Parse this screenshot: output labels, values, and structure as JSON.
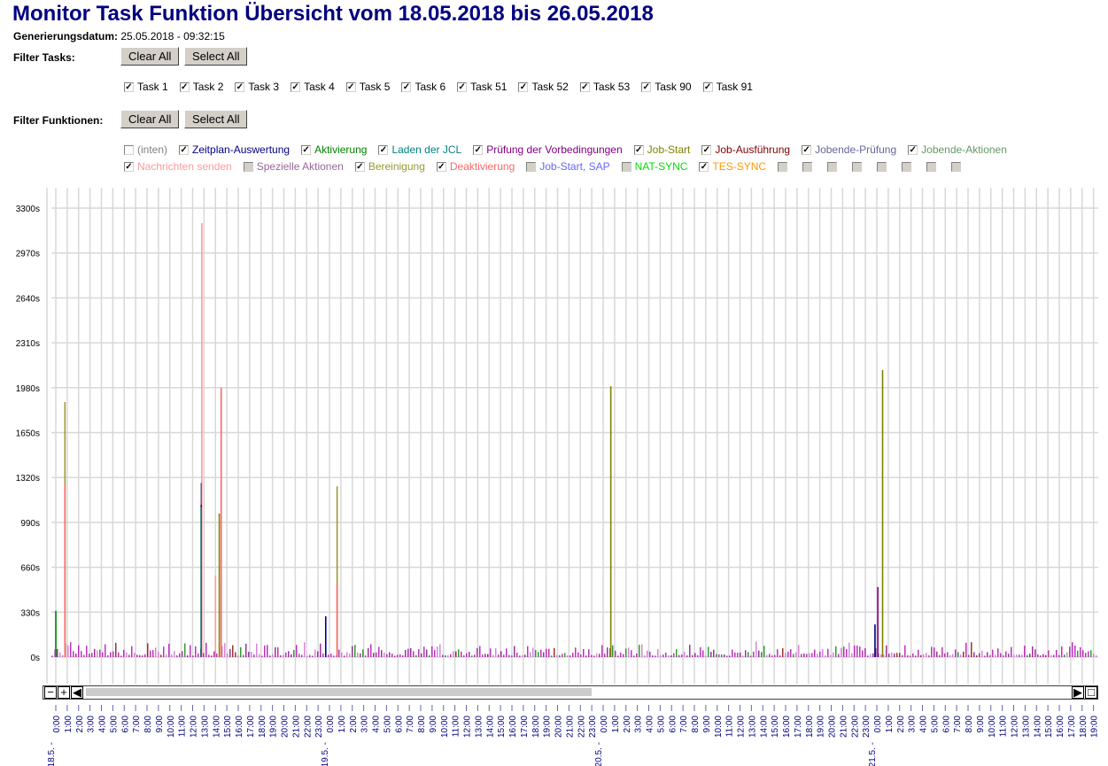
{
  "title": "Monitor Task Funktion Übersicht vom 18.05.2018 bis 26.05.2018",
  "generation": {
    "label": "Generierungsdatum:",
    "value": "25.05.2018 - 09:32:15"
  },
  "filter_tasks": {
    "label": "Filter Tasks:",
    "clear": "Clear All",
    "select": "Select All",
    "items": [
      {
        "label": "Task 1",
        "checked": true
      },
      {
        "label": "Task 2",
        "checked": true
      },
      {
        "label": "Task 3",
        "checked": true
      },
      {
        "label": "Task 4",
        "checked": true
      },
      {
        "label": "Task 5",
        "checked": true
      },
      {
        "label": "Task 6",
        "checked": true
      },
      {
        "label": "Task 51",
        "checked": true
      },
      {
        "label": "Task 52",
        "checked": true
      },
      {
        "label": "Task 53",
        "checked": true
      },
      {
        "label": "Task 90",
        "checked": true
      },
      {
        "label": "Task 91",
        "checked": true
      }
    ]
  },
  "filter_functions": {
    "label": "Filter Funktionen:",
    "clear": "Clear All",
    "select": "Select All",
    "row1": [
      {
        "label": "(inten)",
        "checked": false,
        "color": "#808080"
      },
      {
        "label": "Zeitplan-Auswertung",
        "checked": true,
        "color": "#000080"
      },
      {
        "label": "Aktivierung",
        "checked": true,
        "color": "#008000"
      },
      {
        "label": "Laden der JCL",
        "checked": true,
        "color": "#008080"
      },
      {
        "label": "Prüfung der Vorbedingungen",
        "checked": true,
        "color": "#800080"
      },
      {
        "label": "Job-Start",
        "checked": true,
        "color": "#808000"
      },
      {
        "label": "Job-Ausführung",
        "checked": true,
        "color": "#800000"
      },
      {
        "label": "Jobende-Prüfung",
        "checked": true,
        "color": "#666699"
      },
      {
        "label": "Jobende-Aktionen",
        "checked": true,
        "color": "#669966"
      }
    ],
    "row2": [
      {
        "label": "Nachrichten senden",
        "checked": true,
        "color": "#ff9999"
      },
      {
        "label": "Spezielle Aktionen",
        "checked": false,
        "disabled": true,
        "color": "#996699"
      },
      {
        "label": "Bereinigung",
        "checked": true,
        "color": "#999933"
      },
      {
        "label": "Deaktivierung",
        "checked": true,
        "color": "#ff6666"
      },
      {
        "label": "Job-Start, SAP",
        "checked": false,
        "disabled": true,
        "color": "#6666ff"
      },
      {
        "label": "NAT-SYNC",
        "checked": false,
        "disabled": true,
        "color": "#00dd00"
      },
      {
        "label": "TES-SYNC",
        "checked": true,
        "color": "#ff9900"
      },
      {
        "label": "",
        "disabled": true
      },
      {
        "label": "",
        "disabled": true
      },
      {
        "label": "",
        "disabled": true
      },
      {
        "label": "",
        "disabled": true
      },
      {
        "label": "",
        "disabled": true
      },
      {
        "label": "",
        "disabled": true
      },
      {
        "label": "",
        "disabled": true
      },
      {
        "label": "",
        "disabled": true
      }
    ]
  },
  "chart_data": {
    "type": "bar",
    "ylim": [
      0,
      3300
    ],
    "yticks": [
      "0s",
      "330s",
      "660s",
      "990s",
      "1320s",
      "1650s",
      "1980s",
      "2310s",
      "2640s",
      "2970s",
      "3300s"
    ],
    "grid": true,
    "x_range": [
      "18.5. 0:00",
      "21.5. 19:00"
    ],
    "days": [
      "18.5. -",
      "19.5. -",
      "20.5. -",
      "21.5. -"
    ],
    "hours_per_tick": 1,
    "spikes": [
      {
        "time": "18.5. 0:00",
        "series": "Aktivierung",
        "value": 340
      },
      {
        "time": "18.5. 0:48",
        "series": "Bereinigung",
        "value": 1875
      },
      {
        "time": "18.5. 0:48",
        "series": "Deaktivierung",
        "value": 1265
      },
      {
        "time": "18.5. 12:48",
        "series": "Nachrichten senden",
        "value": 3190
      },
      {
        "time": "18.5. 12:45",
        "series": "Jobende-Prüfung",
        "value": 1280
      },
      {
        "time": "18.5. 12:45",
        "series": "Job-Ausführung",
        "value": 1120
      },
      {
        "time": "18.5. 12:45",
        "series": "Laden der JCL",
        "value": 1100
      },
      {
        "time": "18.5. 14:00",
        "series": "Nachrichten senden",
        "value": 600
      },
      {
        "time": "18.5. 14:20",
        "series": "Job-Start",
        "value": 1055
      },
      {
        "time": "18.5. 14:30",
        "series": "Deaktivierung",
        "value": 1980
      },
      {
        "time": "18.5. 23:40",
        "series": "Zeitplan-Auswertung",
        "value": 300
      },
      {
        "time": "19.5. 0:40",
        "series": "Bereinigung",
        "value": 1255
      },
      {
        "time": "19.5. 0:40",
        "series": "Deaktivierung",
        "value": 540
      },
      {
        "time": "20.5. 23:50",
        "series": "Zeitplan-Auswertung",
        "value": 240
      },
      {
        "time": "20.5. 0:40",
        "series": "Job-Start",
        "value": 1990
      },
      {
        "time": "21.5. 22:15",
        "series": "Deaktivierung",
        "value": 370
      },
      {
        "time": "21.5. 0:05",
        "series": "Prüfung der Vorbedingungen",
        "value": 515
      },
      {
        "time": "21.5. 0:30",
        "series": "Job-Start",
        "value": 2110
      }
    ],
    "baseline_range_s": [
      10,
      130
    ]
  },
  "scrollbar": {
    "zoom_out": "−",
    "zoom_in": "+",
    "left": "◀",
    "right": "▶",
    "reset": "□",
    "position": 0.48
  }
}
